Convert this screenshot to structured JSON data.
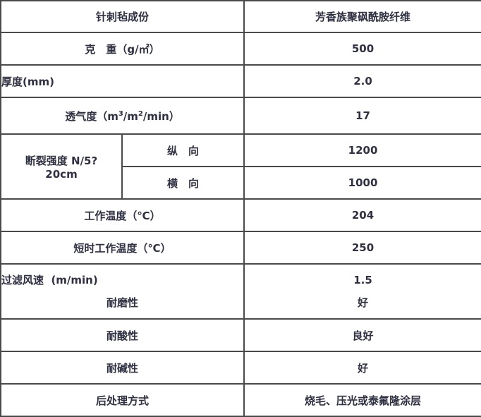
{
  "header": {
    "label": "针刺毡成份",
    "value": "芳香族聚砜酰胺纤维"
  },
  "rows": {
    "weight": {
      "label": "克　重（g/㎡）",
      "value": "500"
    },
    "thickness": {
      "label": "厚度(mm)",
      "value": "2.0"
    },
    "permeability": {
      "label_prefix": "透气度（m",
      "sup1": "3",
      "label_mid": "/m",
      "sup2": "2",
      "label_suffix": "/min）",
      "value": "17"
    },
    "breaking": {
      "label": "断裂强度 N/5?20cm",
      "sub1": "纵　向",
      "value1": "1200",
      "sub2": "横　向",
      "value2": "1000"
    },
    "temp": {
      "label": "工作温度（℃）",
      "value": "204"
    },
    "short_temp": {
      "label": "短时工作温度（℃）",
      "value": "250"
    },
    "filter": {
      "label1": "过滤风速  (m/min)",
      "value1": "1.5",
      "label2": "耐磨性",
      "value2": "好"
    },
    "acid": {
      "label": "耐酸性",
      "value": "良好"
    },
    "alkali": {
      "label": "耐碱性",
      "value": "好"
    },
    "post": {
      "label": "后处理方式",
      "value": "烧毛、压光或泰氟隆涂层"
    }
  }
}
